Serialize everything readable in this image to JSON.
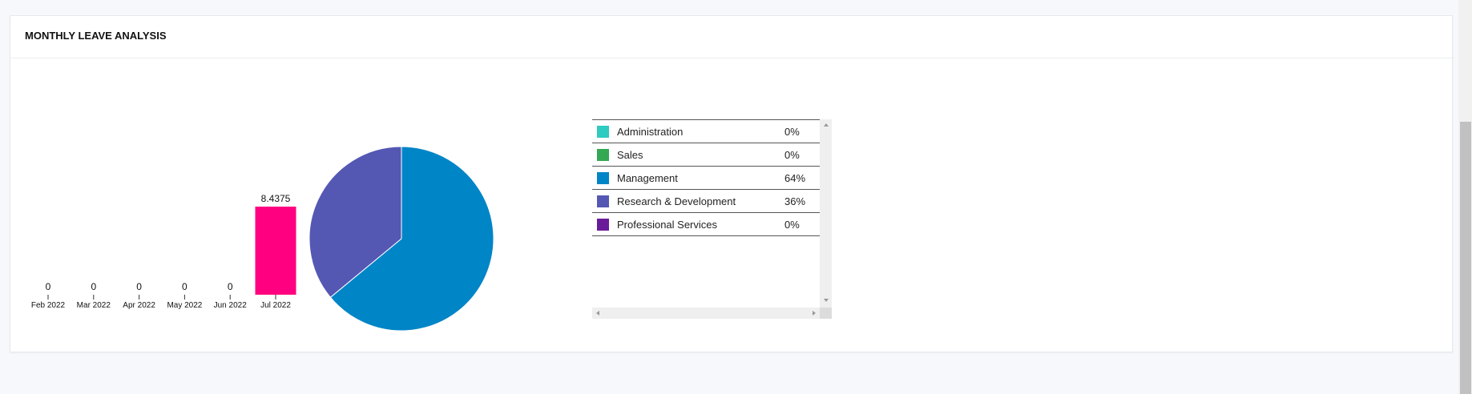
{
  "card": {
    "title": "MONTHLY LEAVE ANALYSIS"
  },
  "chart_data": [
    {
      "type": "bar",
      "categories": [
        "Feb 2022",
        "Mar 2022",
        "Apr 2022",
        "May 2022",
        "Jun 2022",
        "Jul 2022"
      ],
      "values": [
        0,
        0,
        0,
        0,
        0,
        8.4375
      ],
      "color": "#ff0080"
    },
    {
      "type": "pie",
      "categories": [
        "Administration",
        "Sales",
        "Management",
        "Research & Development",
        "Professional Services"
      ],
      "values": [
        0,
        0,
        64,
        36,
        0
      ],
      "value_labels": [
        "0%",
        "0%",
        "64%",
        "36%",
        "0%"
      ],
      "colors": [
        "#2ecbc0",
        "#34a853",
        "#0085c7",
        "#5458b3",
        "#6a1b9a"
      ]
    }
  ]
}
